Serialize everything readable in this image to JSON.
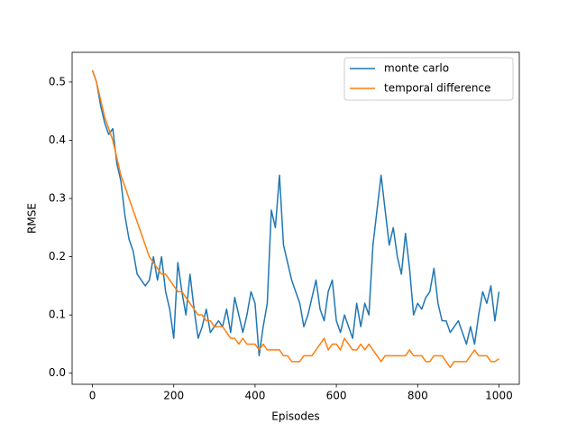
{
  "chart_data": {
    "type": "line",
    "x_label": "Episodes",
    "y_label": "RMSE",
    "x": [
      0,
      10,
      20,
      30,
      40,
      50,
      60,
      70,
      80,
      90,
      100,
      110,
      120,
      130,
      140,
      150,
      160,
      170,
      180,
      190,
      200,
      210,
      220,
      230,
      240,
      250,
      260,
      270,
      280,
      290,
      300,
      310,
      320,
      330,
      340,
      350,
      360,
      370,
      380,
      390,
      400,
      410,
      420,
      430,
      440,
      450,
      460,
      470,
      480,
      490,
      500,
      510,
      520,
      530,
      540,
      550,
      560,
      570,
      580,
      590,
      600,
      610,
      620,
      630,
      640,
      650,
      660,
      670,
      680,
      690,
      700,
      710,
      720,
      730,
      740,
      750,
      760,
      770,
      780,
      790,
      800,
      810,
      820,
      830,
      840,
      850,
      860,
      870,
      880,
      890,
      900,
      910,
      920,
      930,
      940,
      950,
      960,
      970,
      980,
      990,
      1000
    ],
    "series": [
      {
        "name": "monte carlo",
        "color": "#1f77b4",
        "values": [
          0.52,
          0.5,
          0.46,
          0.43,
          0.41,
          0.42,
          0.36,
          0.33,
          0.27,
          0.23,
          0.21,
          0.17,
          0.16,
          0.15,
          0.16,
          0.2,
          0.16,
          0.2,
          0.14,
          0.11,
          0.06,
          0.19,
          0.14,
          0.1,
          0.17,
          0.11,
          0.06,
          0.08,
          0.11,
          0.07,
          0.08,
          0.09,
          0.08,
          0.11,
          0.07,
          0.13,
          0.1,
          0.07,
          0.1,
          0.14,
          0.12,
          0.03,
          0.08,
          0.12,
          0.28,
          0.25,
          0.34,
          0.22,
          0.19,
          0.16,
          0.14,
          0.12,
          0.08,
          0.1,
          0.13,
          0.16,
          0.11,
          0.09,
          0.14,
          0.16,
          0.09,
          0.07,
          0.1,
          0.08,
          0.06,
          0.12,
          0.08,
          0.12,
          0.1,
          0.22,
          0.28,
          0.34,
          0.28,
          0.22,
          0.25,
          0.2,
          0.17,
          0.24,
          0.18,
          0.1,
          0.12,
          0.11,
          0.13,
          0.14,
          0.18,
          0.12,
          0.09,
          0.09,
          0.07,
          0.08,
          0.09,
          0.07,
          0.05,
          0.08,
          0.05,
          0.1,
          0.14,
          0.12,
          0.15,
          0.09,
          0.14
        ]
      },
      {
        "name": "temporal difference",
        "color": "#ff7f0e",
        "values": [
          0.52,
          0.5,
          0.47,
          0.44,
          0.42,
          0.4,
          0.37,
          0.34,
          0.32,
          0.3,
          0.28,
          0.26,
          0.24,
          0.22,
          0.2,
          0.19,
          0.18,
          0.17,
          0.17,
          0.16,
          0.15,
          0.14,
          0.14,
          0.13,
          0.12,
          0.11,
          0.1,
          0.1,
          0.09,
          0.09,
          0.08,
          0.08,
          0.08,
          0.07,
          0.06,
          0.06,
          0.05,
          0.06,
          0.05,
          0.05,
          0.05,
          0.04,
          0.05,
          0.04,
          0.04,
          0.04,
          0.04,
          0.03,
          0.03,
          0.02,
          0.02,
          0.02,
          0.03,
          0.03,
          0.03,
          0.04,
          0.05,
          0.06,
          0.04,
          0.05,
          0.05,
          0.04,
          0.06,
          0.05,
          0.04,
          0.04,
          0.05,
          0.04,
          0.05,
          0.04,
          0.03,
          0.02,
          0.03,
          0.03,
          0.03,
          0.03,
          0.03,
          0.03,
          0.04,
          0.03,
          0.03,
          0.03,
          0.02,
          0.02,
          0.03,
          0.03,
          0.03,
          0.02,
          0.01,
          0.02,
          0.02,
          0.02,
          0.02,
          0.03,
          0.04,
          0.03,
          0.03,
          0.03,
          0.02,
          0.02,
          0.025
        ]
      }
    ],
    "xlim": [
      -50,
      1050
    ],
    "ylim": [
      -0.019,
      0.551
    ],
    "xticks": [
      0,
      200,
      400,
      600,
      800,
      1000
    ],
    "yticks": [
      {
        "value": 0,
        "label": "0.0"
      },
      0.1,
      0.2,
      0.3,
      0.4,
      0.5
    ],
    "grid": false,
    "legend": "upper right"
  }
}
